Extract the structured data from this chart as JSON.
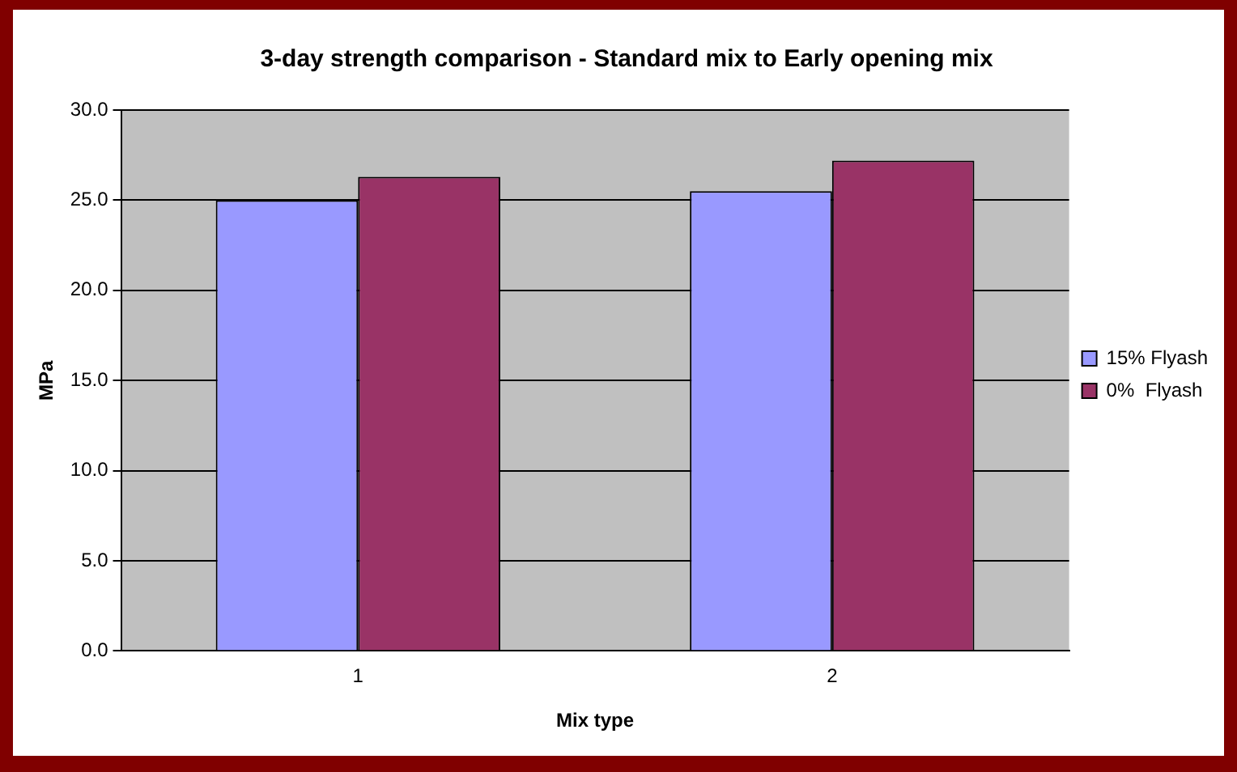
{
  "chart_data": {
    "type": "bar",
    "title": "3-day strength comparison - Standard mix to Early opening mix",
    "xlabel": "Mix type",
    "ylabel": "MPa",
    "categories": [
      "1",
      "2"
    ],
    "series": [
      {
        "name": "15% Flyash",
        "color": "#9999ff",
        "values": [
          25.0,
          25.5
        ]
      },
      {
        "name": "0%  Flyash",
        "color": "#993366",
        "values": [
          26.3,
          27.2
        ]
      }
    ],
    "ylim": [
      0,
      30
    ],
    "yticks": [
      {
        "value": 0,
        "label": "0.0"
      },
      {
        "value": 5,
        "label": "5.0"
      },
      {
        "value": 10,
        "label": "10.0"
      },
      {
        "value": 15,
        "label": "15.0"
      },
      {
        "value": 20,
        "label": "20.0"
      },
      {
        "value": 25,
        "label": "25.0"
      },
      {
        "value": 30,
        "label": "30.0"
      }
    ],
    "grid": "y",
    "legend": "right"
  }
}
